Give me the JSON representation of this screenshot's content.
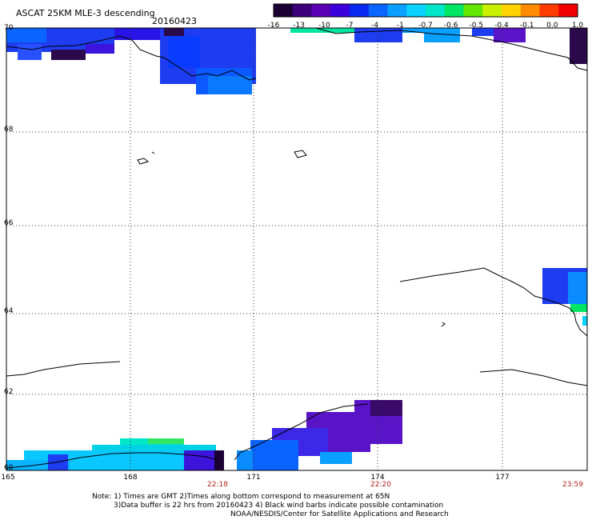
{
  "header": {
    "title": "ASCAT 25KM MLE-3 descending",
    "date": "20160423"
  },
  "colorbar": {
    "labels": [
      "-16",
      "-13",
      "-10",
      "-7",
      "-4",
      "-1",
      "-0.7",
      "-0.6",
      "-0.5",
      "-0.4",
      "-0.1",
      "0.0",
      "1.0"
    ],
    "colors": [
      "#1a0033",
      "#3d007a",
      "#5a00b4",
      "#3c00dc",
      "#0a28f0",
      "#0a64ff",
      "#0aa0ff",
      "#0ad2ff",
      "#00e6c8",
      "#00e664",
      "#64e600",
      "#c8f000",
      "#ffd200",
      "#ff8c00",
      "#ff3c00",
      "#f00000"
    ]
  },
  "map": {
    "lat_labels": [
      "70",
      "68",
      "66",
      "64",
      "62",
      "60"
    ],
    "lon_labels": [
      "165",
      "168",
      "171",
      "174",
      "177"
    ],
    "time_labels": [
      "22:18",
      "22:20",
      "23:59"
    ]
  },
  "footer": {
    "note_line1": "Note: 1) Times are GMT 2)Times along bottom correspond to measurement at 65N",
    "note_line2": "3)Data buffer is 22 hrs from 20160423 4) Black wind barbs indicate possible contamination",
    "credit": "NOAA/NESDIS/Center for Satellite Applications and Research"
  }
}
